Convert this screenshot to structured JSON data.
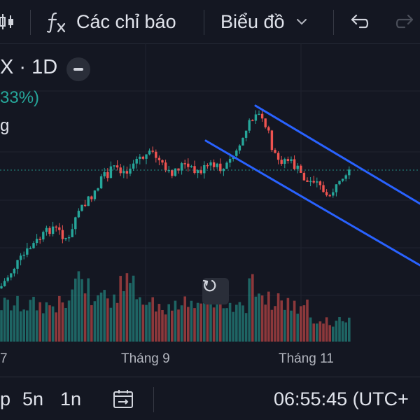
{
  "toolbar": {
    "indicators_label": "Các chỉ báo",
    "chart_type_label": "Biểu đồ"
  },
  "legend": {
    "symbol_interval": "X · 1D",
    "change_percent": "33%)",
    "series_tag": "g"
  },
  "colors": {
    "up": "#26a69a",
    "down": "#ef5350",
    "channel": "#2962ff",
    "price_line": "#26a69a",
    "background": "#141722"
  },
  "icons": {
    "indicator": "fx-icon",
    "undo": "undo-icon",
    "redo": "redo-icon",
    "reset": "reset-icon",
    "date_range": "calendar-range-icon",
    "collapse": "minus-icon"
  },
  "chart_data": {
    "type": "candlestick",
    "x_tick_labels": [
      "7",
      "Tháng 9",
      "Tháng 11"
    ],
    "grid": true,
    "channel_lines": 2
  },
  "bottombar": {
    "ranges": [
      "p",
      "5n",
      "1n"
    ],
    "time": "06:55:45 (UTC+"
  }
}
